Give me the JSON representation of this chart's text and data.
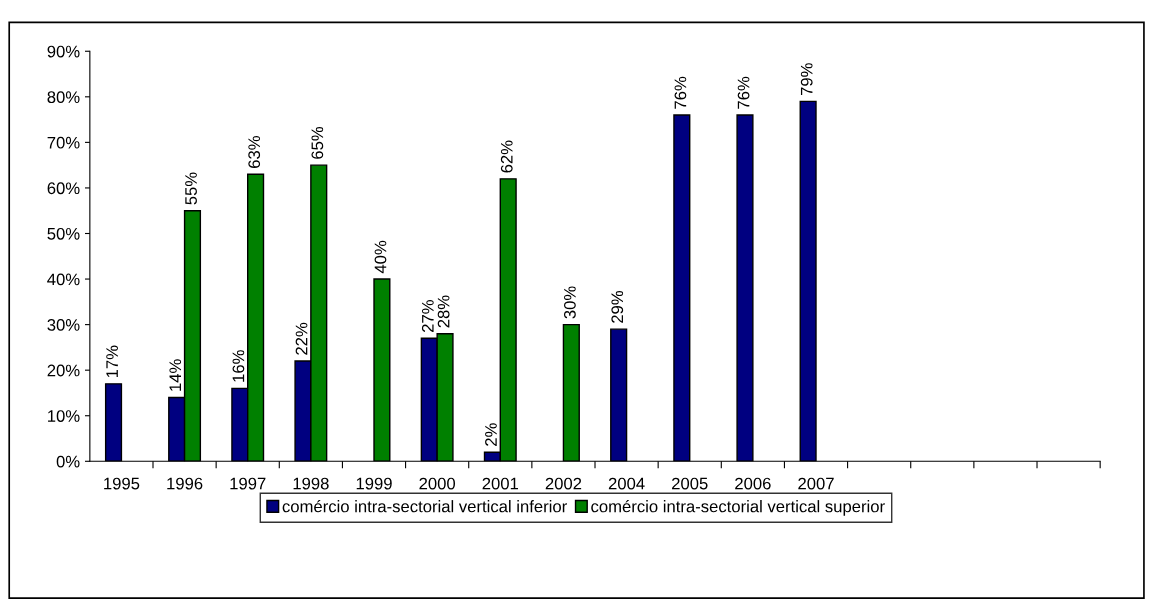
{
  "chart_data": {
    "type": "bar",
    "categories": [
      "1995",
      "1996",
      "1997",
      "1998",
      "1999",
      "2000",
      "2001",
      "2002",
      "2004",
      "2005",
      "2006",
      "2007",
      null,
      null,
      null,
      null
    ],
    "series": [
      {
        "name": "comércio intra-sectorial vertical inferior",
        "color": "#000080",
        "values": [
          17,
          14,
          16,
          22,
          null,
          27,
          2,
          null,
          29,
          76,
          76,
          79,
          null,
          null,
          null,
          null
        ],
        "value_labels": [
          "17%",
          "14%",
          "16%",
          "22%",
          null,
          "27%",
          "2%",
          null,
          "29%",
          "76%",
          "76%",
          "79%",
          null,
          null,
          null,
          null
        ]
      },
      {
        "name": "comércio intra-sectorial vertical superior",
        "color": "#008000",
        "values": [
          null,
          55,
          63,
          65,
          40,
          28,
          62,
          30,
          null,
          null,
          null,
          null,
          null,
          null,
          null,
          null
        ],
        "value_labels": [
          null,
          "55%",
          "63%",
          "65%",
          "40%",
          "28%",
          "62%",
          "30%",
          null,
          null,
          null,
          null,
          null,
          null,
          null,
          null
        ]
      }
    ],
    "ylim": [
      0,
      90
    ],
    "yticks": [
      {
        "value": 0,
        "label": "0%"
      },
      {
        "value": 10,
        "label": "10%"
      },
      {
        "value": 20,
        "label": "20%"
      },
      {
        "value": 30,
        "label": "30%"
      },
      {
        "value": 40,
        "label": "40%"
      },
      {
        "value": 50,
        "label": "50%"
      },
      {
        "value": 60,
        "label": "60%"
      },
      {
        "value": 70,
        "label": "70%"
      },
      {
        "value": 80,
        "label": "80%"
      },
      {
        "value": 90,
        "label": "90%"
      }
    ],
    "grid": false,
    "legend": "bottom"
  }
}
